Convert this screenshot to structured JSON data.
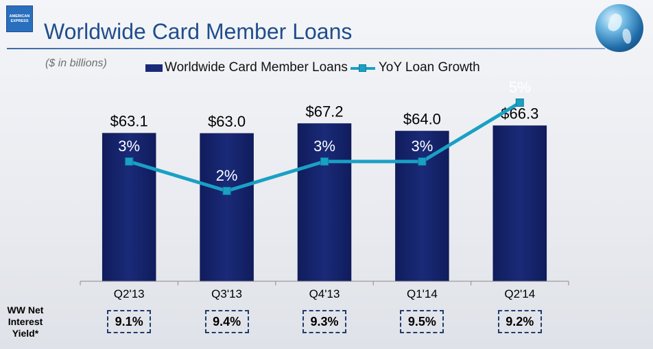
{
  "header": {
    "logo_text_line1": "AMERICAN",
    "logo_text_line2": "EXPRESS",
    "title": "Worldwide Card Member Loans",
    "subtitle": "($ in billions)"
  },
  "colors": {
    "bar": "#1a2a78",
    "line": "#1aa0c4",
    "title": "#1f4e8c"
  },
  "chart_data": {
    "type": "bar",
    "categories": [
      "Q2'13",
      "Q3'13",
      "Q4'13",
      "Q1'14",
      "Q2'14"
    ],
    "series": [
      {
        "name": "Worldwide  Card Member Loans",
        "type": "bar",
        "values": [
          63.1,
          63.0,
          67.2,
          64.0,
          66.3
        ],
        "labels": [
          "$63.1",
          "$63.0",
          "$67.2",
          "$64.0",
          "$66.3"
        ]
      },
      {
        "name": "YoY Loan Growth",
        "type": "line",
        "values": [
          3,
          2,
          3,
          3,
          5
        ],
        "labels": [
          "3%",
          "2%",
          "3%",
          "3%",
          "5%"
        ]
      }
    ],
    "title": "Worldwide Card Member Loans",
    "xlabel": "",
    "ylabel": "",
    "bar_axis_range": [
      0,
      70
    ],
    "growth_axis_range": [
      -4,
      7
    ],
    "legend": "top"
  },
  "net_interest_yield": {
    "label": "WW Net Interest Yield*",
    "values": [
      "9.1%",
      "9.4%",
      "9.3%",
      "9.5%",
      "9.2%"
    ]
  }
}
